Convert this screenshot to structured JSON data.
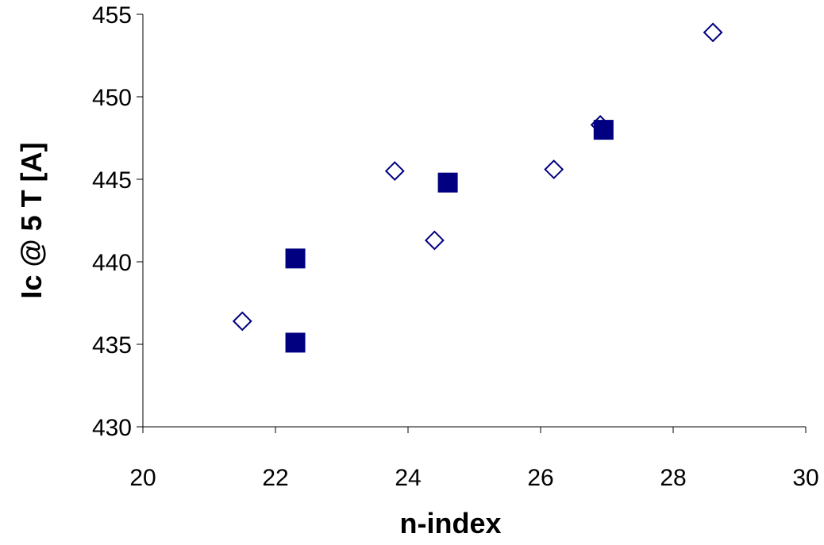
{
  "chart_data": {
    "type": "scatter",
    "title": "",
    "xlabel": "n-index",
    "ylabel": "Ic @ 5 T [A]",
    "xlim": [
      20,
      30
    ],
    "ylim": [
      430,
      455
    ],
    "xticks": [
      20,
      22,
      24,
      26,
      28,
      30
    ],
    "yticks": [
      430,
      435,
      440,
      445,
      450,
      455
    ],
    "grid": false,
    "legend": "none",
    "series": [
      {
        "marker": "diamond-open",
        "color": "#000080",
        "points": [
          {
            "x": 21.5,
            "y": 436.4
          },
          {
            "x": 23.8,
            "y": 445.5
          },
          {
            "x": 24.4,
            "y": 441.3
          },
          {
            "x": 26.2,
            "y": 445.6
          },
          {
            "x": 26.9,
            "y": 448.3
          },
          {
            "x": 28.6,
            "y": 453.9
          }
        ]
      },
      {
        "marker": "square-filled",
        "color": "#000080",
        "points": [
          {
            "x": 22.3,
            "y": 435.1
          },
          {
            "x": 22.3,
            "y": 440.2
          },
          {
            "x": 24.6,
            "y": 444.8
          },
          {
            "x": 26.95,
            "y": 448.0
          }
        ]
      }
    ]
  }
}
